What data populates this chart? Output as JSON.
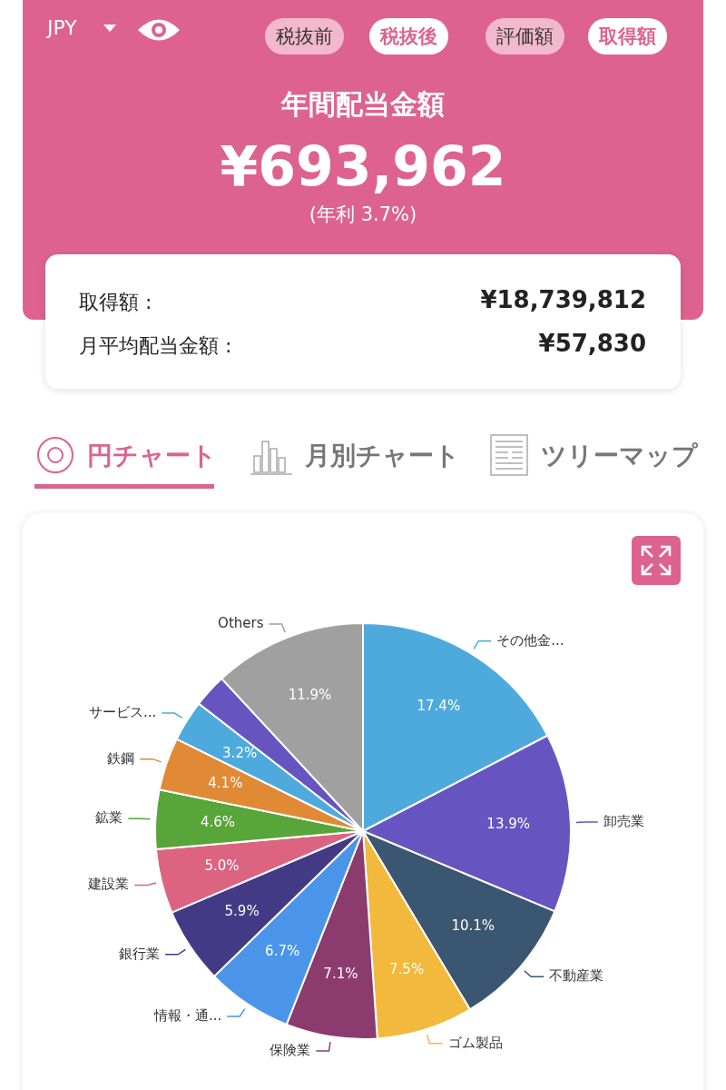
{
  "chart_data": {
    "type": "pie",
    "title": "年間配当金額",
    "annotations": [
      "JPY",
      "税抜前",
      "税抜後",
      "評価額",
      "取得額",
      "¥693,962",
      "(年利 3.7%)",
      "取得額 :",
      "¥18,739,812",
      "月平均配当金額 :",
      "¥57,830",
      "円チャート",
      "月別チャート",
      "ツリーマップ"
    ],
    "categories": [
      "その他金...",
      "卸売業",
      "不動産業",
      "ゴム製品",
      "保険業",
      "情報・通...",
      "銀行業",
      "建設業",
      "鉱業",
      "鉄鋼",
      "サービス...",
      null,
      "Others"
    ],
    "values": [
      17.4,
      13.9,
      10.1,
      7.5,
      7.1,
      6.7,
      5.9,
      5.0,
      4.6,
      4.1,
      3.2,
      2.6,
      11.9
    ],
    "value_labels": [
      "17.4%",
      "13.9%",
      "10.1%",
      "7.5%",
      "7.1%",
      "6.7%",
      "5.9%",
      "5.0%",
      "4.6%",
      "4.1%",
      "3.2%",
      null,
      "11.9%"
    ],
    "colors": [
      "#4eaadc",
      "#6655c0",
      "#3b5670",
      "#f2b93c",
      "#8c3b6e",
      "#4a95ea",
      "#433a85",
      "#dc6480",
      "#58a53a",
      "#e08a35",
      "#4eaadc",
      "#6655c0",
      "#a0a0a0"
    ],
    "legend": false
  }
}
